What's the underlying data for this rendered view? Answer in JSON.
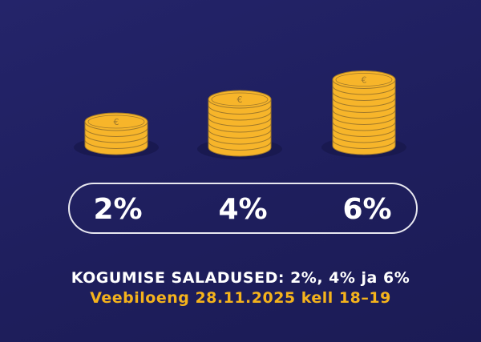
{
  "colors": {
    "background": "#1f1f5e",
    "coin": "#f7b52a",
    "coin_line": "#a27a2a",
    "accent_text": "#f5b31c"
  },
  "coin_icon": "euro-icon",
  "rates": [
    "2%",
    "4%",
    "6%"
  ],
  "headline": "KOGUMISE SALADUSED: 2%, 4% ja 6%",
  "subline": "Veebiloeng 28.11.2025 kell 18–19"
}
